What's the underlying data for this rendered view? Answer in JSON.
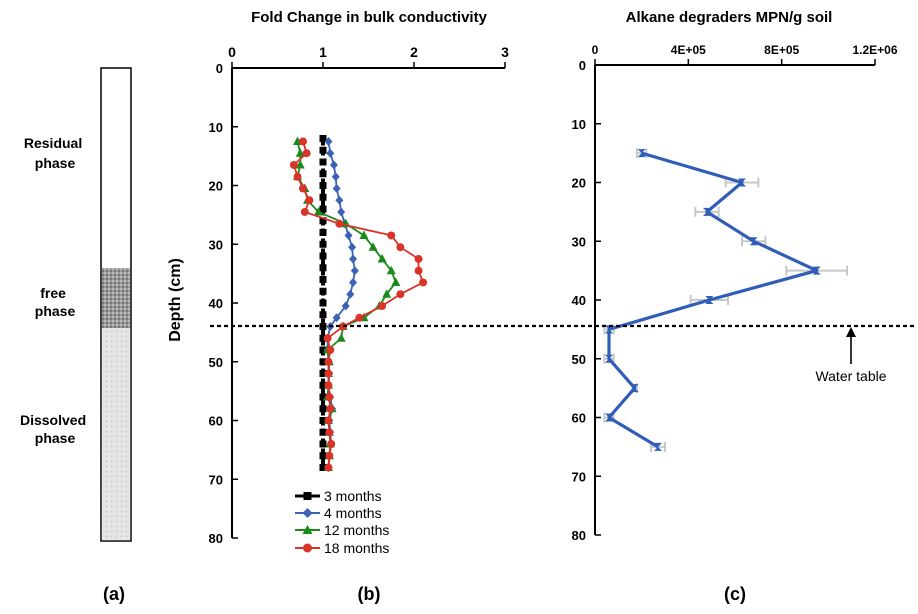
{
  "panel_a": {
    "label": "(a)",
    "phases": [
      {
        "name": "Residual phase",
        "lines": [
          "Residual",
          "phase"
        ]
      },
      {
        "name": "free phase",
        "lines": [
          "free",
          "phase"
        ]
      },
      {
        "name": "Dissolved phase",
        "lines": [
          "Dissolved",
          "phase"
        ]
      }
    ]
  },
  "panel_b": {
    "label": "(b)"
  },
  "panel_c": {
    "label": "(c)"
  },
  "annotations": {
    "water_table": "Water table"
  },
  "colors": {
    "3 months": "#000000",
    "4 months": "#3b62b5",
    "12 months": "#1a8a1a",
    "18 months": "#d9342a",
    "alkane": "#2f5db8",
    "error_bars": "#c8c8c8"
  },
  "chart_data": [
    {
      "type": "line",
      "title": "Fold Change in bulk conductivity",
      "xlabel": "",
      "ylabel": "Depth (cm)",
      "x_axis_position": "top",
      "xlim": [
        0,
        3
      ],
      "ylim": [
        0,
        80
      ],
      "y_inverted": true,
      "x_ticks": [
        "0",
        "1",
        "2",
        "3"
      ],
      "y_ticks": [
        "0",
        "10",
        "20",
        "30",
        "40",
        "50",
        "60",
        "70",
        "80"
      ],
      "legend_position": "bottom",
      "series": [
        {
          "name": "3 months",
          "marker": "square",
          "x": [
            1,
            1,
            1,
            1,
            1,
            1,
            1,
            1,
            1,
            1,
            1,
            1,
            1,
            1,
            1,
            1,
            1,
            1,
            1,
            1,
            1,
            1,
            1,
            1,
            1,
            1,
            1,
            1,
            1
          ],
          "y": [
            12,
            14,
            16,
            18,
            20,
            22,
            24,
            26,
            28,
            30,
            32,
            34,
            36,
            38,
            40,
            42,
            44,
            46,
            48,
            50,
            52,
            54,
            56,
            58,
            60,
            62,
            64,
            66,
            68
          ]
        },
        {
          "name": "4 months",
          "marker": "diamond",
          "x": [
            1.06,
            1.08,
            1.12,
            1.14,
            1.15,
            1.18,
            1.2,
            1.24,
            1.28,
            1.32,
            1.33,
            1.35,
            1.33,
            1.3,
            1.25,
            1.15,
            1.08,
            1.05,
            1.05,
            1.06,
            1.07,
            1.06,
            1.08,
            1.1,
            1.07,
            1.08,
            1.09,
            1.07,
            1.06
          ],
          "y": [
            12.5,
            14.5,
            16.5,
            18.5,
            20.5,
            22.5,
            24.5,
            26.5,
            28.5,
            30.5,
            32.5,
            34.5,
            36.5,
            38.5,
            40.5,
            42.5,
            44,
            46,
            48,
            50,
            52,
            54,
            56,
            58,
            60,
            62,
            64,
            66,
            68
          ]
        },
        {
          "name": "12 months",
          "marker": "triangle",
          "x": [
            0.72,
            0.75,
            0.75,
            0.72,
            0.8,
            0.83,
            0.95,
            1.25,
            1.45,
            1.55,
            1.65,
            1.75,
            1.8,
            1.7,
            1.62,
            1.45,
            1.22,
            1.2,
            1.05,
            1.07,
            1.06,
            1.06,
            1.05,
            1.1,
            1.06,
            1.07,
            1.08,
            1.07,
            1.06
          ],
          "y": [
            12.5,
            14.5,
            16.5,
            18.5,
            20.5,
            22.5,
            24.5,
            26.5,
            28.5,
            30.5,
            32.5,
            34.5,
            36.5,
            38.5,
            40.5,
            42.5,
            44,
            46,
            48,
            50,
            52,
            54,
            56,
            58,
            60,
            62,
            64,
            66,
            68
          ]
        },
        {
          "name": "18 months",
          "marker": "circle",
          "x": [
            0.78,
            0.82,
            0.68,
            0.72,
            0.78,
            0.85,
            0.8,
            1.18,
            1.75,
            1.85,
            2.05,
            2.05,
            2.1,
            1.85,
            1.65,
            1.4,
            1.22,
            1.05,
            1.08,
            1.06,
            1.06,
            1.06,
            1.07,
            1.08,
            1.06,
            1.07,
            1.09,
            1.07,
            1.06
          ],
          "y": [
            12.5,
            14.5,
            16.5,
            18.5,
            20.5,
            22.5,
            24.5,
            26.5,
            28.5,
            30.5,
            32.5,
            34.5,
            36.5,
            38.5,
            40.5,
            42.5,
            44,
            46,
            48,
            50,
            52,
            54,
            56,
            58,
            60,
            62,
            64,
            66,
            68
          ]
        }
      ]
    },
    {
      "type": "line",
      "title": "Alkane degraders MPN/g soil",
      "xlabel": "",
      "ylabel": "",
      "x_axis_position": "top",
      "xlim": [
        0,
        1200000
      ],
      "ylim": [
        0,
        80
      ],
      "y_inverted": true,
      "x_ticks": [
        "0",
        "4E+05",
        "8E+05",
        "1.2E+06"
      ],
      "y_ticks": [
        "0",
        "10",
        "20",
        "30",
        "40",
        "50",
        "60",
        "70",
        "80"
      ],
      "legend_position": "none",
      "series": [
        {
          "name": "",
          "marker": "bowtie",
          "y": [
            15,
            20,
            25,
            30,
            35,
            40,
            45,
            50,
            55,
            60,
            65
          ],
          "x": [
            200000,
            630000,
            480000,
            680000,
            950000,
            490000,
            60000,
            60000,
            170000,
            60000,
            270000
          ],
          "err": [
            20000,
            70000,
            50000,
            50000,
            130000,
            80000,
            20000,
            20000,
            10000,
            20000,
            30000
          ]
        }
      ]
    }
  ]
}
